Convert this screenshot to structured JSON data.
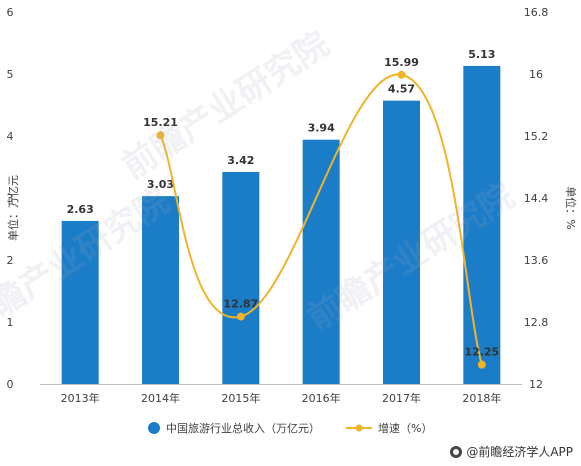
{
  "chart_data": {
    "type": "bar+line",
    "categories": [
      "2013年",
      "2014年",
      "2015年",
      "2016年",
      "2017年",
      "2018年"
    ],
    "series": [
      {
        "name": "中国旅游行业总收入（万亿元）",
        "type": "bar",
        "axis": "left",
        "values": [
          2.63,
          3.03,
          3.42,
          3.94,
          4.57,
          5.13
        ]
      },
      {
        "name": "增速（%）",
        "type": "line",
        "axis": "right",
        "values": [
          null,
          15.21,
          12.87,
          null,
          15.99,
          12.25
        ]
      }
    ],
    "data_labels": {
      "bars": [
        "2.63",
        "3.03",
        "3.42",
        "3.94",
        "4.57",
        "5.13"
      ],
      "line": [
        "",
        "15.21",
        "12.87",
        "",
        "15.99",
        "12.25"
      ]
    },
    "y_left": {
      "label": "单位：万亿元",
      "range": [
        0,
        6
      ],
      "ticks": [
        "0",
        "1",
        "2",
        "3",
        "4",
        "5",
        "6"
      ]
    },
    "y_right": {
      "label": "单位：%",
      "range": [
        12,
        16.8
      ],
      "ticks": [
        "12",
        "12.8",
        "13.6",
        "14.4",
        "15.2",
        "16",
        "16.8"
      ]
    },
    "legend_position": "bottom",
    "grid": false,
    "colors": {
      "bar": "#1b7cc8",
      "line": "#f0b429",
      "axis_text": "#404040",
      "label_text": "#333333"
    }
  },
  "footer": {
    "source": "@前瞻经济学人APP"
  },
  "watermark": {
    "text": "前瞻产业研究院"
  }
}
